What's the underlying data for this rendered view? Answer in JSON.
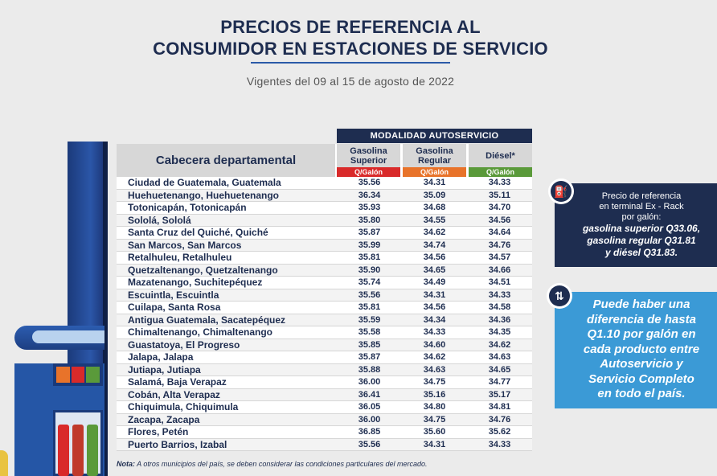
{
  "header": {
    "title_line1": "PRECIOS DE REFERENCIA AL",
    "title_line2": "CONSUMIDOR EN ESTACIONES DE SERVICIO",
    "subtitle": "Vigentes del 09 al 15 de agosto de 2022"
  },
  "table": {
    "modalidad": "MODALIDAD AUTOSERVICIO",
    "col_cabecera": "Cabecera departamental",
    "columns": [
      {
        "name_l1": "Gasolina",
        "name_l2": "Superior",
        "unit": "Q/Galón",
        "color": "#d92a2a"
      },
      {
        "name_l1": "Gasolina",
        "name_l2": "Regular",
        "unit": "Q/Galón",
        "color": "#e8732a"
      },
      {
        "name_l1": "Diésel*",
        "name_l2": "",
        "unit": "Q/Galón",
        "color": "#5a9a3a"
      }
    ],
    "rows": [
      {
        "name": "Ciudad de Guatemala, Guatemala",
        "superior": "35.56",
        "regular": "34.31",
        "diesel": "34.33"
      },
      {
        "name": "Huehuetenango, Huehuetenango",
        "superior": "36.34",
        "regular": "35.09",
        "diesel": "35.11"
      },
      {
        "name": "Totonicapán, Totonicapán",
        "superior": "35.93",
        "regular": "34.68",
        "diesel": "34.70"
      },
      {
        "name": "Sololá, Sololá",
        "superior": "35.80",
        "regular": "34.55",
        "diesel": "34.56"
      },
      {
        "name": "Santa Cruz del Quiché, Quiché",
        "superior": "35.87",
        "regular": "34.62",
        "diesel": "34.64"
      },
      {
        "name": "San Marcos, San Marcos",
        "superior": "35.99",
        "regular": "34.74",
        "diesel": "34.76"
      },
      {
        "name": "Retalhuleu, Retalhuleu",
        "superior": "35.81",
        "regular": "34.56",
        "diesel": "34.57"
      },
      {
        "name": "Quetzaltenango, Quetzaltenango",
        "superior": "35.90",
        "regular": "34.65",
        "diesel": "34.66"
      },
      {
        "name": "Mazatenango, Suchitepéquez",
        "superior": "35.74",
        "regular": "34.49",
        "diesel": "34.51"
      },
      {
        "name": "Escuintla, Escuintla",
        "superior": "35.56",
        "regular": "34.31",
        "diesel": "34.33"
      },
      {
        "name": "Cuilapa, Santa Rosa",
        "superior": "35.81",
        "regular": "34.56",
        "diesel": "34.58"
      },
      {
        "name": "Antigua Guatemala, Sacatepéquez",
        "superior": "35.59",
        "regular": "34.34",
        "diesel": "34.36"
      },
      {
        "name": "Chimaltenango, Chimaltenango",
        "superior": "35.58",
        "regular": "34.33",
        "diesel": "34.35"
      },
      {
        "name": "Guastatoya, El Progreso",
        "superior": "35.85",
        "regular": "34.60",
        "diesel": "34.62"
      },
      {
        "name": "Jalapa, Jalapa",
        "superior": "35.87",
        "regular": "34.62",
        "diesel": "34.63"
      },
      {
        "name": "Jutiapa, Jutiapa",
        "superior": "35.88",
        "regular": "34.63",
        "diesel": "34.65"
      },
      {
        "name": "Salamá, Baja Verapaz",
        "superior": "36.00",
        "regular": "34.75",
        "diesel": "34.77"
      },
      {
        "name": "Cobán, Alta Verapaz",
        "superior": "36.41",
        "regular": "35.16",
        "diesel": "35.17"
      },
      {
        "name": "Chiquimula, Chiquimula",
        "superior": "36.05",
        "regular": "34.80",
        "diesel": "34.81"
      },
      {
        "name": "Zacapa, Zacapa",
        "superior": "36.00",
        "regular": "34.75",
        "diesel": "34.76"
      },
      {
        "name": "Flores, Petén",
        "superior": "36.85",
        "regular": "35.60",
        "diesel": "35.62"
      },
      {
        "name": "Puerto Barrios, Izabal",
        "superior": "35.56",
        "regular": "34.31",
        "diesel": "34.33"
      }
    ]
  },
  "note": {
    "label": "Nota:",
    "text": "A otros municipios del país, se deben considerar las condiciones particulares del mercado."
  },
  "info_box": {
    "icon": "fuel-pump-icon",
    "line1": "Precio de referencia",
    "line2": "en terminal Ex - Rack",
    "line3": "por galón:",
    "line4": "gasolina superior Q33.06,",
    "line5": "gasolina regular Q31.81",
    "line6": "y diésel Q31.83."
  },
  "diff_box": {
    "icon": "up-down-arrows-icon",
    "lines": [
      "Puede haber una",
      "diferencia de hasta",
      "Q1.10 por galón en",
      "cada producto entre",
      "Autoservicio y",
      "Servicio Completo",
      "en todo el país."
    ]
  },
  "colors": {
    "navy": "#1e2d50",
    "blue": "#3b9ad6",
    "red": "#d92a2a",
    "orange": "#e8732a",
    "green": "#5a9a3a"
  }
}
